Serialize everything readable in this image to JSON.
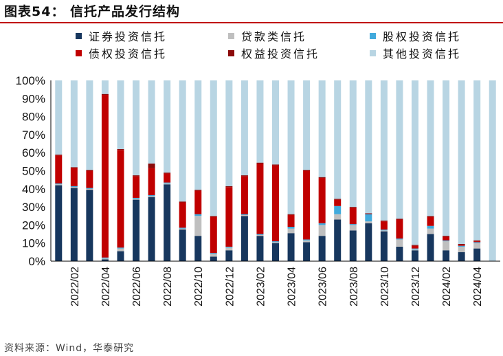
{
  "title": "图表54：  信托产品发行结构",
  "source": "资料来源：Wind，华泰研究",
  "chart_data": {
    "type": "bar",
    "stacked": true,
    "percent": true,
    "ylim": [
      0,
      100
    ],
    "yticks": [
      "0%",
      "10%",
      "20%",
      "30%",
      "40%",
      "50%",
      "60%",
      "70%",
      "80%",
      "90%",
      "100%"
    ],
    "legend_position": "top",
    "categories": [
      "2022/01",
      "2022/02",
      "2022/03",
      "2022/04",
      "2022/05",
      "2022/06",
      "2022/07",
      "2022/08",
      "2022/09",
      "2022/10",
      "2022/11",
      "2022/12",
      "2023/01",
      "2023/02",
      "2023/03",
      "2023/04",
      "2023/05",
      "2023/06",
      "2023/07",
      "2023/08",
      "2023/09",
      "2023/10",
      "2023/11",
      "2023/12",
      "2024/01",
      "2024/02",
      "2024/03",
      "2024/04",
      "2024/05"
    ],
    "visible_xticks": [
      "2022/02",
      "2022/04",
      "2022/06",
      "2022/08",
      "2022/10",
      "2022/12",
      "2023/02",
      "2023/04",
      "2023/06",
      "2023/08",
      "2023/10",
      "2023/12",
      "2024/02",
      "2024/04"
    ],
    "series": [
      {
        "name": "证券投资信托",
        "color": "#17375e",
        "values": [
          42,
          40.5,
          39.5,
          1,
          5.5,
          34,
          35.5,
          42.5,
          17.5,
          14,
          2.5,
          6,
          25,
          14,
          10,
          15.5,
          10.5,
          14,
          23,
          17,
          21,
          16.5,
          8,
          6,
          15,
          6,
          5,
          7,
          0
        ]
      },
      {
        "name": "贷款类信托",
        "color": "#bfbfbf",
        "values": [
          0.5,
          0.5,
          0.5,
          0.5,
          1.5,
          0.5,
          0.5,
          0.5,
          0.5,
          11,
          1.5,
          1.5,
          0.5,
          0.5,
          0.5,
          2.5,
          1,
          6,
          3,
          3,
          1,
          0.5,
          4,
          0.5,
          3,
          5,
          3,
          3,
          0
        ]
      },
      {
        "name": "股权投资信托",
        "color": "#41aadc",
        "values": [
          0.5,
          0.5,
          0.5,
          0.5,
          0.5,
          0.5,
          0.5,
          0.5,
          0.5,
          1,
          0.5,
          0.5,
          0.5,
          0.5,
          0.5,
          1,
          0.5,
          1,
          4.5,
          0.5,
          4,
          0.5,
          0.5,
          0.5,
          1.5,
          0.5,
          0.5,
          0.5,
          0
        ]
      },
      {
        "name": "债权投资信托",
        "color": "#c00000",
        "values": [
          15.5,
          10,
          9.5,
          90,
          54,
          12,
          15,
          5,
          14,
          13,
          20,
          33,
          21,
          39,
          42,
          6.5,
          38,
          25,
          3.5,
          9,
          0,
          4.5,
          10.5,
          1.5,
          5,
          2,
          0.5,
          0.5,
          0
        ]
      },
      {
        "name": "权益投资信托",
        "color": "#8b0a0a",
        "values": [
          0.5,
          0.5,
          0.5,
          0.5,
          0.5,
          0.5,
          2.5,
          0.5,
          0.5,
          0.5,
          0.5,
          0.5,
          0.5,
          0.5,
          0.5,
          0.5,
          0.5,
          0.5,
          0.5,
          0.5,
          0.5,
          0.5,
          0.5,
          0.5,
          0.5,
          0.5,
          0.5,
          0.5,
          0
        ]
      },
      {
        "name": "其他投资信托",
        "color": "#b8d5e3",
        "values": [
          41,
          48,
          49.5,
          7.5,
          38,
          52.5,
          46,
          51,
          67,
          60.5,
          75,
          58.5,
          52.5,
          45.5,
          46.5,
          74,
          49.5,
          53.5,
          65.5,
          70,
          73.5,
          77.5,
          76.5,
          91,
          75,
          86,
          90.5,
          88.5,
          100
        ]
      }
    ]
  }
}
